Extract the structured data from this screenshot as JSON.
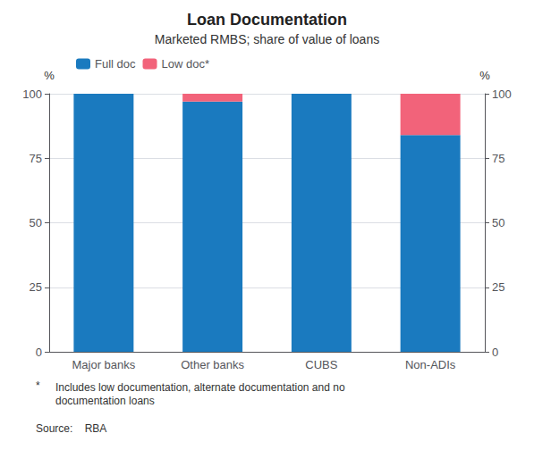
{
  "chart_data": {
    "type": "bar",
    "title": "Loan Documentation",
    "subtitle": "Marketed RMBS; share of value of loans",
    "categories": [
      "Major banks",
      "Other banks",
      "CUBS",
      "Non-ADIs"
    ],
    "series": [
      {
        "name": "Full doc",
        "color": "#1a7abf",
        "values": [
          100,
          97,
          100,
          84
        ]
      },
      {
        "name": "Low doc*",
        "color": "#f2637a",
        "values": [
          0,
          3,
          0,
          16
        ]
      }
    ],
    "stacked": true,
    "ylim": [
      0,
      100
    ],
    "yticks": [
      0,
      25,
      50,
      75,
      100
    ],
    "y2lim": [
      0,
      100
    ],
    "y2ticks": [
      0,
      25,
      50,
      75,
      100
    ],
    "ylabel": "%",
    "y2label": "%",
    "grid": true,
    "legend": "upper left",
    "footnote_mark": "*",
    "footnote": "Includes low documentation, alternate documentation and no\ndocumentation loans",
    "source": "Source:    RBA"
  }
}
